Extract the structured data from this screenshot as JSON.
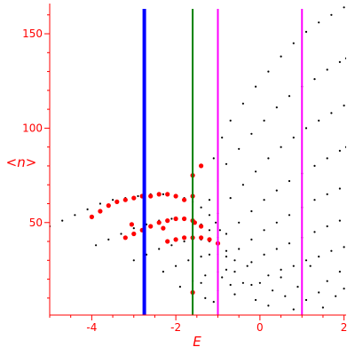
{
  "chart_data": {
    "type": "scatter",
    "title": "",
    "xlabel": "E",
    "ylabel": "<n>",
    "xlim": [
      -5,
      2.05
    ],
    "ylim": [
      1,
      166
    ],
    "x_ticks": [
      -4,
      -2,
      0,
      2
    ],
    "x_tick_labels": [
      "-4",
      "-2",
      "0",
      "2"
    ],
    "y_ticks": [
      50,
      100,
      150
    ],
    "y_tick_labels": [
      "50",
      "100",
      "150"
    ],
    "grid": false,
    "legend": "none",
    "colors": {
      "axis": "#ff0000",
      "dots": "#000000",
      "highlight": "#ff0000",
      "line_blue": "#0000ff",
      "line_green": "#008000",
      "line_magenta": "#ff00ff"
    },
    "vertical_lines": [
      {
        "x": -2.75,
        "color": "#0000ff"
      },
      {
        "x": -1.6,
        "color": "#008000"
      },
      {
        "x": -1.0,
        "color": "#ff00ff"
      },
      {
        "x": 1.0,
        "color": "#ff00ff"
      }
    ],
    "series": [
      {
        "color": "#000000",
        "points": [
          [
            -5.0,
            48
          ],
          [
            -4.7,
            51
          ],
          [
            -4.4,
            54
          ],
          [
            -4.1,
            57
          ],
          [
            -3.8,
            60
          ],
          [
            -3.5,
            62
          ],
          [
            -3.2,
            63
          ],
          [
            -2.9,
            64
          ],
          [
            -2.6,
            65
          ],
          [
            -2.3,
            65
          ],
          [
            -2.0,
            64
          ],
          [
            -1.8,
            63
          ],
          [
            -1.6,
            61
          ],
          [
            -1.4,
            58
          ],
          [
            -1.2,
            54
          ],
          [
            -1.05,
            50
          ],
          [
            -0.95,
            46
          ]
        ]
      },
      {
        "color": "#000000",
        "points": [
          [
            -3.9,
            38
          ],
          [
            -3.6,
            41
          ],
          [
            -3.3,
            44
          ],
          [
            -3.0,
            47
          ],
          [
            -2.7,
            49
          ],
          [
            -2.4,
            51
          ],
          [
            -2.1,
            52
          ],
          [
            -1.8,
            52
          ],
          [
            -1.6,
            51
          ],
          [
            -1.4,
            49
          ],
          [
            -1.2,
            46
          ],
          [
            -1.0,
            42
          ]
        ]
      },
      {
        "color": "#000000",
        "points": [
          [
            -3.0,
            30
          ],
          [
            -2.7,
            33
          ],
          [
            -2.4,
            36
          ],
          [
            -2.1,
            38
          ],
          [
            -1.8,
            40
          ],
          [
            -1.6,
            41
          ],
          [
            -1.4,
            41
          ],
          [
            -1.2,
            40
          ],
          [
            -1.0,
            38
          ],
          [
            -0.8,
            35
          ]
        ]
      },
      {
        "color": "#000000",
        "points": [
          [
            -2.3,
            24
          ],
          [
            -2.0,
            27
          ],
          [
            -1.7,
            30
          ],
          [
            -1.4,
            32
          ],
          [
            -1.2,
            33
          ],
          [
            -1.0,
            33
          ],
          [
            -0.8,
            32
          ],
          [
            -0.6,
            30
          ]
        ]
      },
      {
        "color": "#000000",
        "points": [
          [
            -1.9,
            16
          ],
          [
            -1.6,
            19
          ],
          [
            -1.3,
            22
          ],
          [
            -1.0,
            24
          ],
          [
            -0.8,
            25
          ],
          [
            -0.6,
            24
          ]
        ]
      },
      {
        "color": "#000000",
        "points": [
          [
            -1.3,
            10
          ],
          [
            -1.0,
            14
          ],
          [
            -0.7,
            17
          ],
          [
            -0.4,
            18
          ],
          [
            -0.2,
            17
          ]
        ]
      },
      {
        "color": "#000000",
        "points": [
          [
            -1.1,
            84
          ],
          [
            -0.9,
            95
          ],
          [
            -0.7,
            104
          ],
          [
            -0.4,
            113
          ],
          [
            -0.1,
            122
          ],
          [
            0.2,
            130
          ],
          [
            0.5,
            138
          ],
          [
            0.8,
            145
          ],
          [
            1.1,
            151
          ],
          [
            1.4,
            156
          ],
          [
            1.7,
            160
          ],
          [
            2.0,
            164
          ]
        ]
      },
      {
        "color": "#000000",
        "points": [
          [
            -1.2,
            62
          ],
          [
            -1.0,
            72
          ],
          [
            -0.8,
            81
          ],
          [
            -0.5,
            89
          ],
          [
            -0.2,
            97
          ],
          [
            0.1,
            104
          ],
          [
            0.4,
            111
          ],
          [
            0.7,
            117
          ],
          [
            1.0,
            122
          ],
          [
            1.3,
            126
          ],
          [
            1.6,
            131
          ],
          [
            1.9,
            135
          ],
          [
            2.05,
            137
          ]
        ]
      },
      {
        "color": "#000000",
        "points": [
          [
            -1.0,
            55
          ],
          [
            -0.7,
            63
          ],
          [
            -0.4,
            70
          ],
          [
            -0.1,
            77
          ],
          [
            0.2,
            84
          ],
          [
            0.5,
            90
          ],
          [
            0.8,
            95
          ],
          [
            1.1,
            100
          ],
          [
            1.4,
            104
          ],
          [
            1.7,
            108
          ],
          [
            2.0,
            112
          ]
        ]
      },
      {
        "color": "#000000",
        "points": [
          [
            -0.8,
            44
          ],
          [
            -0.5,
            50
          ],
          [
            -0.2,
            56
          ],
          [
            0.1,
            62
          ],
          [
            0.4,
            67
          ],
          [
            0.7,
            72
          ],
          [
            1.0,
            76
          ],
          [
            1.3,
            80
          ],
          [
            1.6,
            84
          ],
          [
            1.9,
            88
          ],
          [
            2.05,
            90
          ]
        ]
      },
      {
        "color": "#000000",
        "points": [
          [
            -0.5,
            36
          ],
          [
            -0.2,
            41
          ],
          [
            0.1,
            46
          ],
          [
            0.4,
            50
          ],
          [
            0.7,
            54
          ],
          [
            1.0,
            58
          ],
          [
            1.3,
            62
          ],
          [
            1.6,
            65
          ],
          [
            1.9,
            68
          ]
        ]
      },
      {
        "color": "#000000",
        "points": [
          [
            -0.2,
            29
          ],
          [
            0.1,
            33
          ],
          [
            0.4,
            36
          ],
          [
            0.7,
            39
          ],
          [
            1.0,
            42
          ],
          [
            1.3,
            45
          ],
          [
            1.6,
            48
          ],
          [
            1.9,
            51
          ]
        ]
      },
      {
        "color": "#000000",
        "points": [
          [
            0.2,
            22
          ],
          [
            0.5,
            25
          ],
          [
            0.8,
            27
          ],
          [
            1.1,
            30
          ],
          [
            1.4,
            32
          ],
          [
            1.7,
            35
          ],
          [
            2.0,
            37
          ]
        ]
      },
      {
        "color": "#000000",
        "points": [
          [
            -1.4,
            18
          ],
          [
            -1.1,
            8
          ],
          [
            -0.9,
            21
          ],
          [
            -0.6,
            12
          ],
          [
            -0.3,
            27
          ],
          [
            -0.1,
            9
          ],
          [
            0.0,
            18
          ],
          [
            0.2,
            6
          ],
          [
            0.3,
            14
          ],
          [
            0.5,
            21
          ],
          [
            0.6,
            11
          ],
          [
            0.8,
            4
          ],
          [
            0.9,
            16
          ],
          [
            1.1,
            9
          ],
          [
            1.2,
            27
          ],
          [
            1.4,
            13
          ],
          [
            1.5,
            5
          ],
          [
            1.6,
            19
          ],
          [
            1.8,
            11
          ],
          [
            1.9,
            24
          ],
          [
            2.0,
            15
          ]
        ]
      },
      {
        "color": "#ff0000",
        "points": [
          [
            -4.0,
            53
          ],
          [
            -3.8,
            56
          ],
          [
            -3.6,
            59
          ],
          [
            -3.4,
            61
          ],
          [
            -3.2,
            62
          ],
          [
            -3.0,
            63
          ],
          [
            -2.8,
            64
          ],
          [
            -2.6,
            64
          ],
          [
            -2.4,
            65
          ],
          [
            -2.2,
            65
          ],
          [
            -2.0,
            64
          ],
          [
            -1.8,
            62
          ]
        ]
      },
      {
        "color": "#ff0000",
        "points": [
          [
            -3.2,
            42
          ],
          [
            -3.0,
            44
          ],
          [
            -2.8,
            46
          ],
          [
            -2.6,
            48
          ],
          [
            -2.4,
            50
          ],
          [
            -2.2,
            51
          ],
          [
            -2.0,
            52
          ],
          [
            -1.8,
            52
          ],
          [
            -1.6,
            51
          ],
          [
            -1.4,
            48
          ]
        ]
      },
      {
        "color": "#ff0000",
        "points": [
          [
            -2.2,
            40
          ],
          [
            -2.0,
            41
          ],
          [
            -1.8,
            42
          ],
          [
            -1.6,
            42
          ],
          [
            -1.4,
            42
          ],
          [
            -1.2,
            41
          ],
          [
            -1.0,
            39
          ]
        ]
      },
      {
        "color": "#ff0000",
        "points": [
          [
            -3.05,
            49
          ],
          [
            -2.3,
            47
          ],
          [
            -1.6,
            75
          ],
          [
            -1.6,
            64
          ],
          [
            -1.55,
            50
          ],
          [
            -1.6,
            13
          ],
          [
            -1.4,
            80
          ]
        ]
      }
    ]
  }
}
